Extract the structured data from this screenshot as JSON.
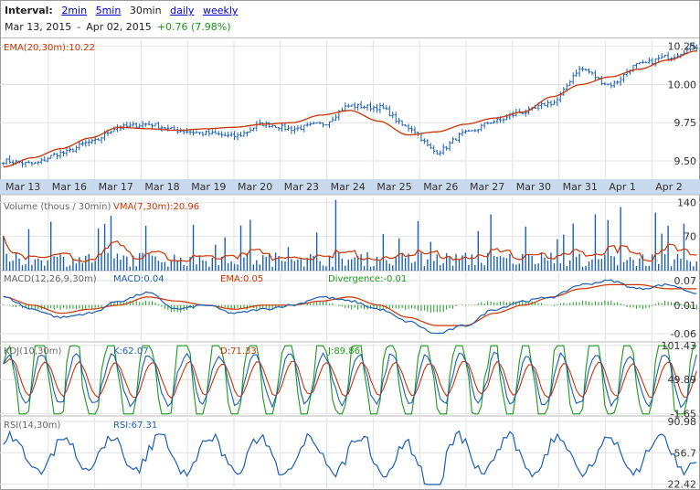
{
  "header": {
    "interval_label": "Interval:",
    "interval_options": [
      "2min",
      "5min",
      "30min",
      "daily",
      "weekly"
    ],
    "interval_selected": "30min",
    "date_from": "Mar 13, 2015",
    "date_sep": "-",
    "date_to": "Apr 02, 2015",
    "change": "+0.76 (7.98%)"
  },
  "colors": {
    "price": "#1a5fb4",
    "ema": "#cc3300",
    "volume": "#1a5fb4",
    "vma": "#cc3300",
    "macd": "#1a5fb4",
    "macd_ema": "#cc3300",
    "divergence": "#1a9a1a",
    "k": "#1a5fb4",
    "d": "#cc3300",
    "j": "#1a9a1a",
    "rsi": "#1a5fb4",
    "date_band": "#c9d9ee",
    "grid": "#e2e2e2",
    "change_up": "#1a9a1a"
  },
  "chart_data": [
    {
      "type": "line",
      "panel": "price",
      "label": "EMA(20,30m):10.22",
      "dates": [
        "Mar 13",
        "Mar 16",
        "Mar 17",
        "Mar 18",
        "Mar 19",
        "Mar 20",
        "Mar 23",
        "Mar 24",
        "Mar 25",
        "Mar 26",
        "Mar 27",
        "Mar 30",
        "Mar 31",
        "Apr 1",
        "Apr 2"
      ],
      "y_ticks": [
        "10.25",
        "10.00",
        "9.75",
        "9.50"
      ],
      "ylim": [
        9.38,
        10.29
      ],
      "price_anchors": [
        9.5,
        9.48,
        9.55,
        9.62,
        9.72,
        9.74,
        9.7,
        9.68,
        9.66,
        9.74,
        9.71,
        9.74,
        9.86,
        9.85,
        9.72,
        9.56,
        9.68,
        9.76,
        9.82,
        9.88,
        10.1,
        10.0,
        10.13,
        10.18,
        10.25
      ],
      "ema_anchors": [
        9.46,
        9.52,
        9.58,
        9.65,
        9.72,
        9.71,
        9.7,
        9.71,
        9.72,
        9.74,
        9.75,
        9.8,
        9.83,
        9.76,
        9.67,
        9.69,
        9.74,
        9.78,
        9.82,
        9.92,
        10.0,
        10.05,
        10.1,
        10.16,
        10.22
      ]
    },
    {
      "type": "bar",
      "panel": "volume",
      "label": "Volume (thous / 30min)",
      "vma_label": "VMA(7,30m):20.96",
      "y_ticks": [
        "140",
        "70"
      ],
      "ylim": [
        0,
        150
      ]
    },
    {
      "type": "line",
      "panel": "macd",
      "label": "MACD(12,26,9,30m)",
      "series_labels": {
        "macd": "MACD:0.04",
        "ema": "EMA:0.05",
        "divergence": "Divergence:-0.01"
      },
      "y_ticks": [
        "0.07",
        "0.01",
        "-0.06"
      ],
      "ylim": [
        -0.08,
        0.09
      ],
      "macd_anchors": [
        0.03,
        0.0,
        -0.02,
        -0.01,
        0.02,
        0.04,
        0.0,
        0.01,
        -0.01,
        0.0,
        0.01,
        0.03,
        0.02,
        0.0,
        -0.03,
        -0.06,
        -0.04,
        0.0,
        0.02,
        0.03,
        0.06,
        0.07,
        0.05,
        0.06,
        0.04
      ],
      "ema_anchors": [
        0.03,
        0.01,
        -0.01,
        0.0,
        0.01,
        0.03,
        0.02,
        0.01,
        0.0,
        0.01,
        0.01,
        0.02,
        0.03,
        0.01,
        -0.02,
        -0.04,
        -0.04,
        -0.01,
        0.01,
        0.03,
        0.05,
        0.06,
        0.06,
        0.05,
        0.05
      ]
    },
    {
      "type": "line",
      "panel": "kdj",
      "label": "KDJ(10,30m)",
      "series_labels": {
        "k": "K:62.07",
        "d": "D:71.33",
        "j": "J:89.86"
      },
      "y_ticks": [
        "101.43",
        "49.89",
        "-1.65"
      ],
      "ylim": [
        -5,
        104
      ]
    },
    {
      "type": "line",
      "panel": "rsi",
      "label": "RSI(14,30m)",
      "series_labels": {
        "rsi": "RSI:67.31"
      },
      "y_ticks": [
        "90.98",
        "56.7",
        "22.42"
      ],
      "ylim": [
        18,
        95
      ]
    }
  ]
}
